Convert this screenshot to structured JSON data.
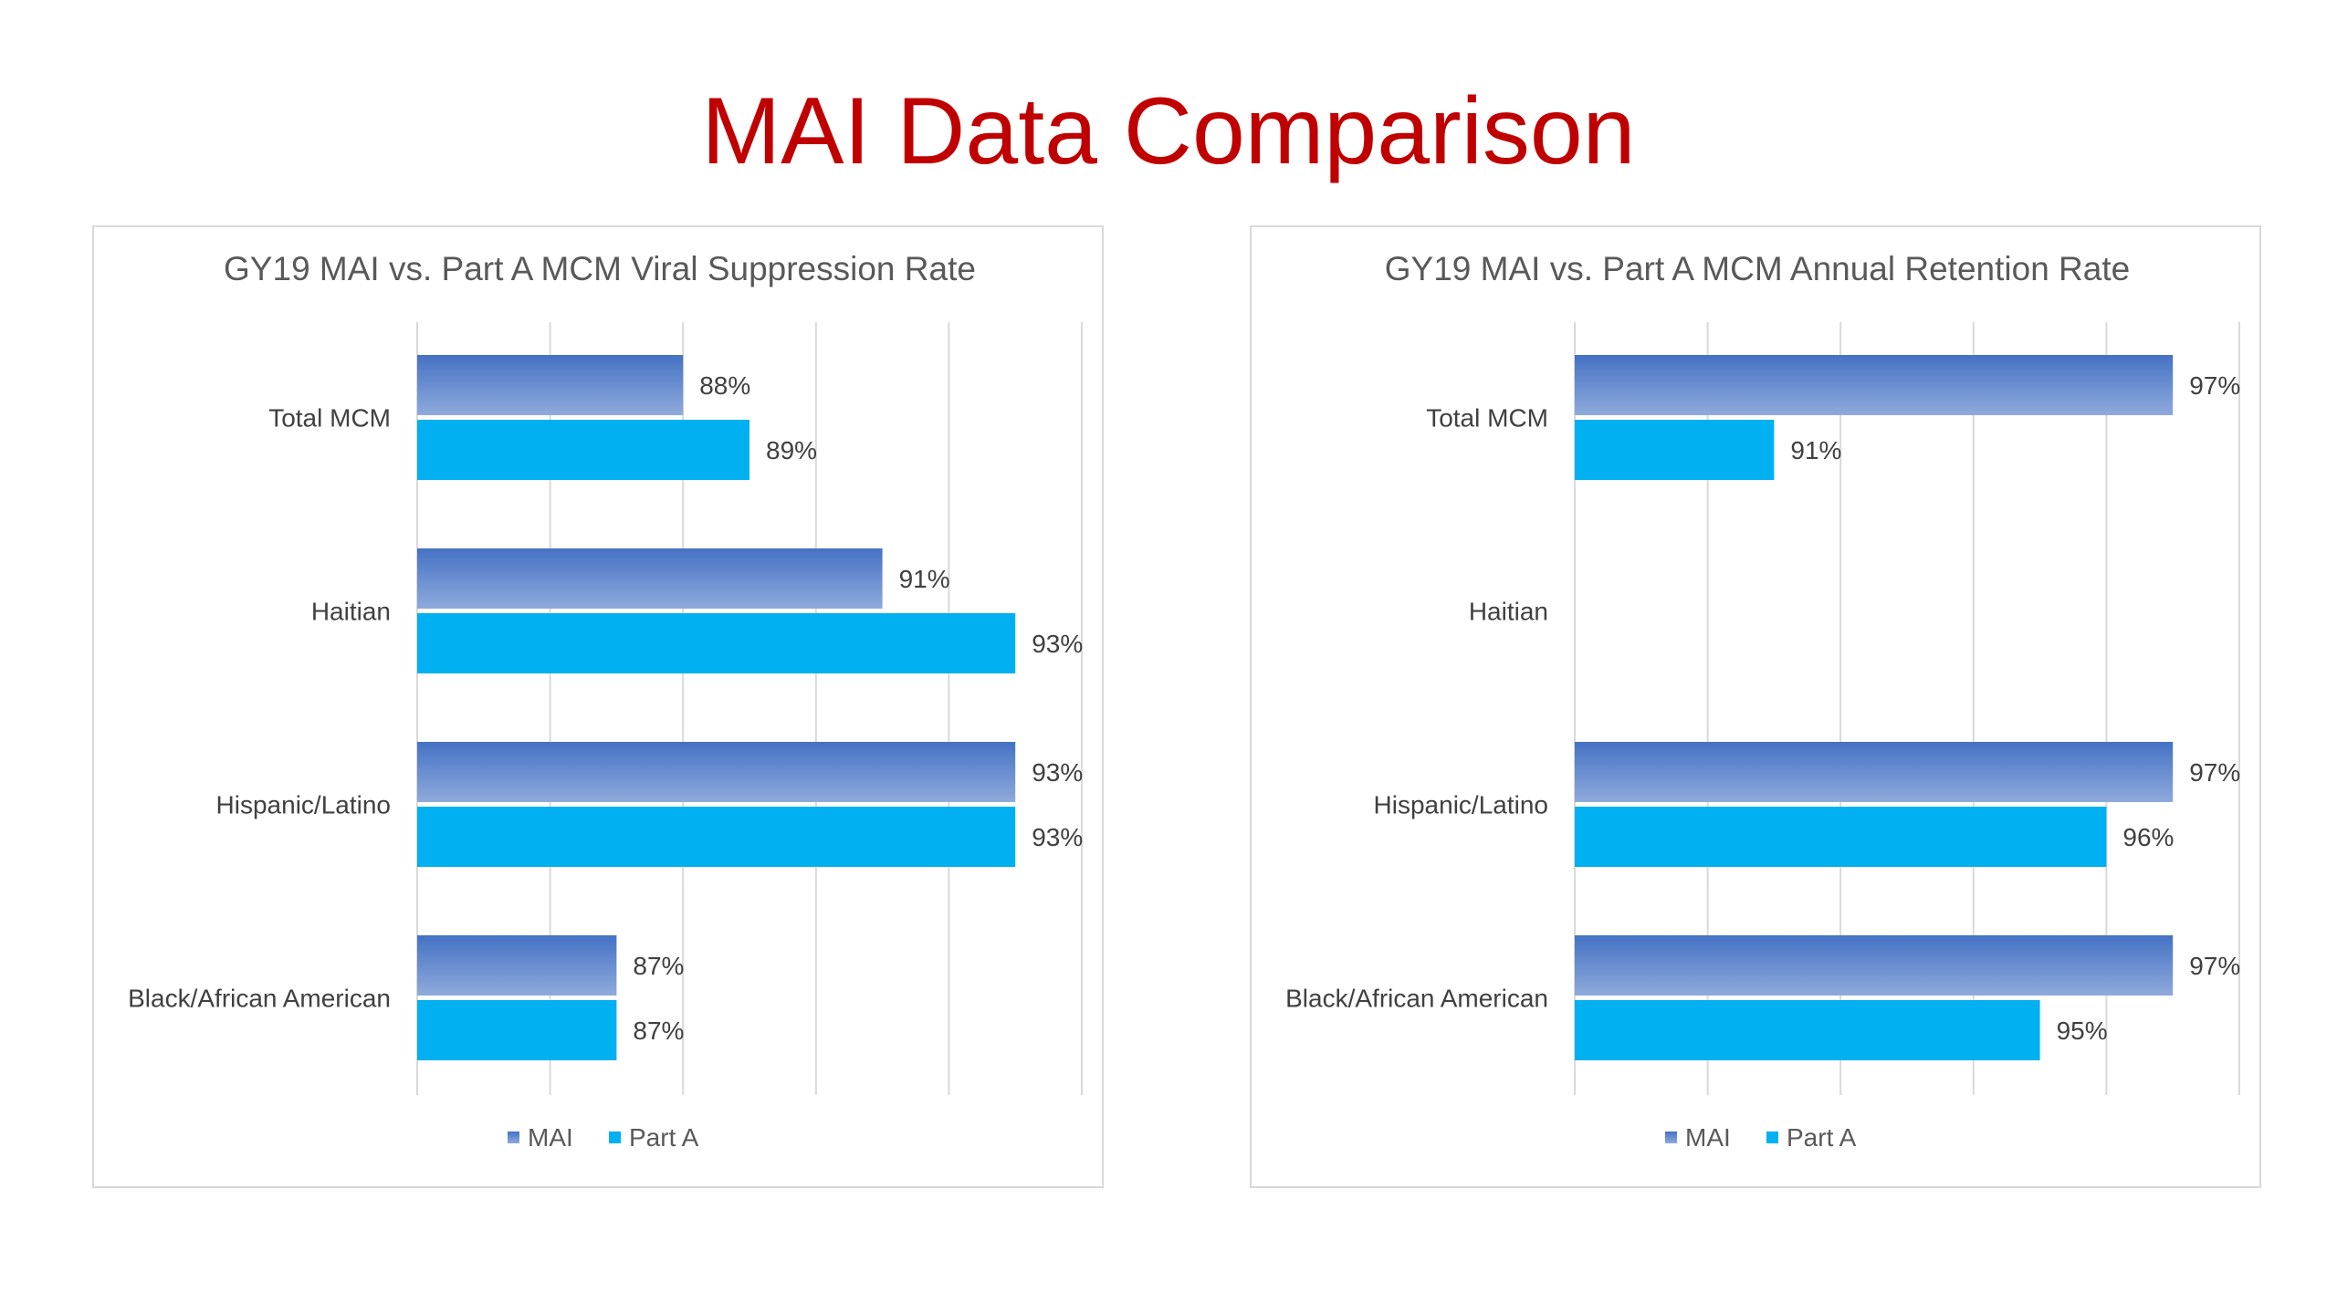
{
  "slide": {
    "title": "MAI Data Comparison",
    "title_color": "#c00000"
  },
  "colors": {
    "mai_top": "#4472c4",
    "mai_bottom": "#8faadc",
    "part_a": "#00b0f0",
    "gridline": "#d9d9d9",
    "frame_border": "#d9d9d9",
    "text": "#404040"
  },
  "chart_data": [
    {
      "type": "bar",
      "orientation": "horizontal",
      "title": "GY19 MAI vs. Part A MCM Viral Suppression Rate",
      "categories": [
        "Total MCM",
        "Haitian",
        "Hispanic/Latino",
        "Black/African American"
      ],
      "series": [
        {
          "name": "MAI",
          "values": [
            88,
            91,
            93,
            87
          ],
          "labels": [
            "88%",
            "91%",
            "93%",
            "87%"
          ]
        },
        {
          "name": "Part A",
          "values": [
            89,
            93,
            93,
            87
          ],
          "labels": [
            "89%",
            "93%",
            "93%",
            "87%"
          ]
        }
      ],
      "xlim": [
        84,
        94
      ],
      "grid": true,
      "legend_position": "bottom"
    },
    {
      "type": "bar",
      "orientation": "horizontal",
      "title": "GY19 MAI vs. Part A MCM Annual Retention Rate",
      "categories": [
        "Total MCM",
        "Haitian",
        "Hispanic/Latino",
        "Black/African American"
      ],
      "series": [
        {
          "name": "MAI",
          "values": [
            97,
            null,
            97,
            97
          ],
          "labels": [
            "97%",
            "",
            "97%",
            "97%"
          ]
        },
        {
          "name": "Part A",
          "values": [
            91,
            null,
            96,
            95
          ],
          "labels": [
            "91%",
            "",
            "96%",
            "95%"
          ]
        }
      ],
      "xlim": [
        88,
        98
      ],
      "grid": true,
      "legend_position": "bottom"
    }
  ]
}
